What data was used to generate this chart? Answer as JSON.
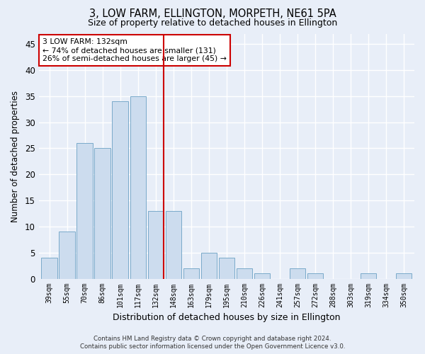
{
  "title1": "3, LOW FARM, ELLINGTON, MORPETH, NE61 5PA",
  "title2": "Size of property relative to detached houses in Ellington",
  "xlabel": "Distribution of detached houses by size in Ellington",
  "ylabel": "Number of detached properties",
  "categories": [
    "39sqm",
    "55sqm",
    "70sqm",
    "86sqm",
    "101sqm",
    "117sqm",
    "132sqm",
    "148sqm",
    "163sqm",
    "179sqm",
    "195sqm",
    "210sqm",
    "226sqm",
    "241sqm",
    "257sqm",
    "272sqm",
    "288sqm",
    "303sqm",
    "319sqm",
    "334sqm",
    "350sqm"
  ],
  "values": [
    4,
    9,
    26,
    25,
    34,
    35,
    13,
    13,
    2,
    5,
    4,
    2,
    1,
    0,
    2,
    1,
    0,
    0,
    1,
    0,
    1
  ],
  "bar_color": "#ccdcee",
  "bar_edge_color": "#7aaaca",
  "highlight_index": 6,
  "highlight_line_color": "#cc0000",
  "annotation_box_color": "#ffffff",
  "annotation_border_color": "#cc0000",
  "annotation_text_line1": "3 LOW FARM: 132sqm",
  "annotation_text_line2": "← 74% of detached houses are smaller (131)",
  "annotation_text_line3": "26% of semi-detached houses are larger (45) →",
  "ylim": [
    0,
    47
  ],
  "yticks": [
    0,
    5,
    10,
    15,
    20,
    25,
    30,
    35,
    40,
    45
  ],
  "background_color": "#e8eef8",
  "grid_color": "#ffffff",
  "footer_line1": "Contains HM Land Registry data © Crown copyright and database right 2024.",
  "footer_line2": "Contains public sector information licensed under the Open Government Licence v3.0."
}
